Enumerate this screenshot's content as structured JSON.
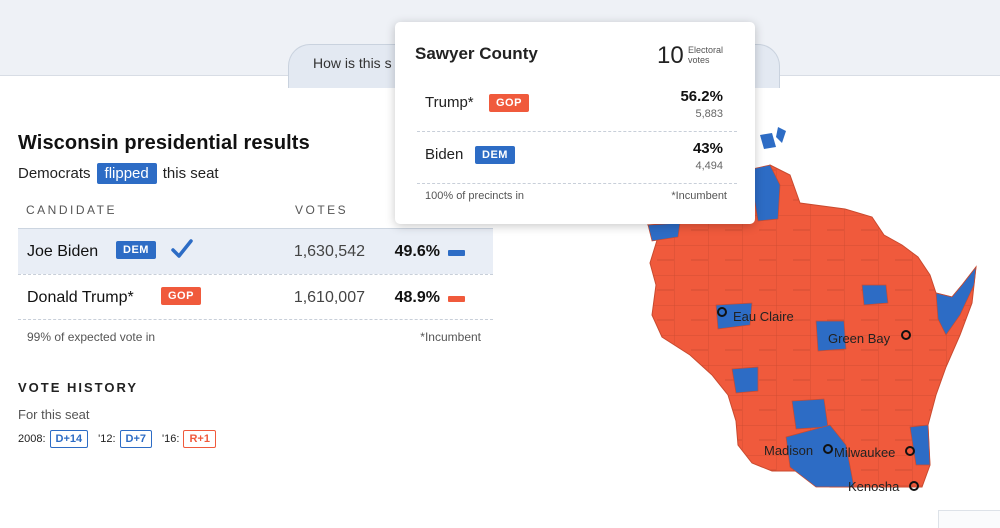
{
  "header": {
    "tab_prefix": "How is this s",
    "tab_suffix": ")"
  },
  "results": {
    "title": "Wisconsin presidential results",
    "subtitle_before": "Democrats",
    "flipped_label": "flipped",
    "subtitle_after": "this seat",
    "col_candidate": "CANDIDATE",
    "col_votes": "VOTES",
    "candidates": [
      {
        "name": "Joe Biden",
        "party": "DEM",
        "votes": "1,630,542",
        "pct": "49.6%",
        "winner": true
      },
      {
        "name": "Donald Trump*",
        "party": "GOP",
        "votes": "1,610,007",
        "pct": "48.9%",
        "winner": false
      }
    ],
    "expected_vote": "99% of expected vote in",
    "incumbent_note": "*Incumbent"
  },
  "history": {
    "heading": "VOTE HISTORY",
    "for_seat": "For this seat",
    "entries": [
      {
        "year": "2008:",
        "result": "D+14",
        "color": "#2d6cc5"
      },
      {
        "year": "'12:",
        "result": "D+7",
        "color": "#2d6cc5"
      },
      {
        "year": "'16:",
        "result": "R+1",
        "color": "#f05a3c"
      }
    ]
  },
  "tooltip": {
    "county": "Sawyer County",
    "electoral_votes": "10",
    "electoral_label": "Electoral votes",
    "rows": [
      {
        "name": "Trump*",
        "party": "GOP",
        "pct": "56.2%",
        "votes": "5,883"
      },
      {
        "name": "Biden",
        "party": "DEM",
        "pct": "43%",
        "votes": "4,494"
      }
    ],
    "precincts": "100% of precincts in",
    "incumbent_note": "*Incumbent"
  },
  "map": {
    "cities": [
      "Eau Claire",
      "Green Bay",
      "Madison",
      "Milwaukee",
      "Kenosha"
    ],
    "colors": {
      "dem": "#2d6cc5",
      "gop": "#f05a3c",
      "border": "#c94a2f"
    }
  },
  "icons": {
    "winner": "checkmark-icon"
  }
}
